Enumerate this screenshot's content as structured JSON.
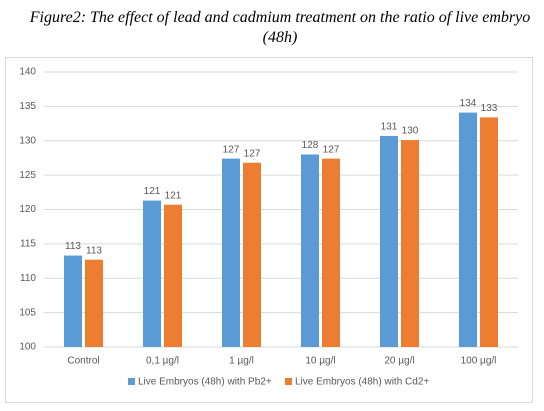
{
  "chart_data": {
    "type": "bar",
    "title": "Figure2: The effect of lead and cadmium treatment on the ratio of live embryo (48h)",
    "categories": [
      "Control",
      "0,1 µg/l",
      "1 µg/l",
      "10 µg/l",
      "20 µg/l",
      "100 µg/l"
    ],
    "series": [
      {
        "name": "Live Embryos (48h) with Pb2+",
        "color": "#5b9bd5",
        "values": [
          113.3,
          121.3,
          127.4,
          128.0,
          130.7,
          134.1
        ],
        "value_labels": [
          "113",
          "121",
          "127",
          "128",
          "131",
          "134"
        ]
      },
      {
        "name": "Live Embryos (48h) with Cd2+",
        "color": "#ed7d31",
        "values": [
          112.7,
          120.7,
          126.8,
          127.4,
          130.1,
          133.4
        ],
        "value_labels": [
          "113",
          "121",
          "127",
          "127",
          "130",
          "133"
        ]
      }
    ],
    "ylim": [
      100,
      140
    ],
    "yticks": [
      100,
      105,
      110,
      115,
      120,
      125,
      130,
      135,
      140
    ],
    "grid": true
  }
}
